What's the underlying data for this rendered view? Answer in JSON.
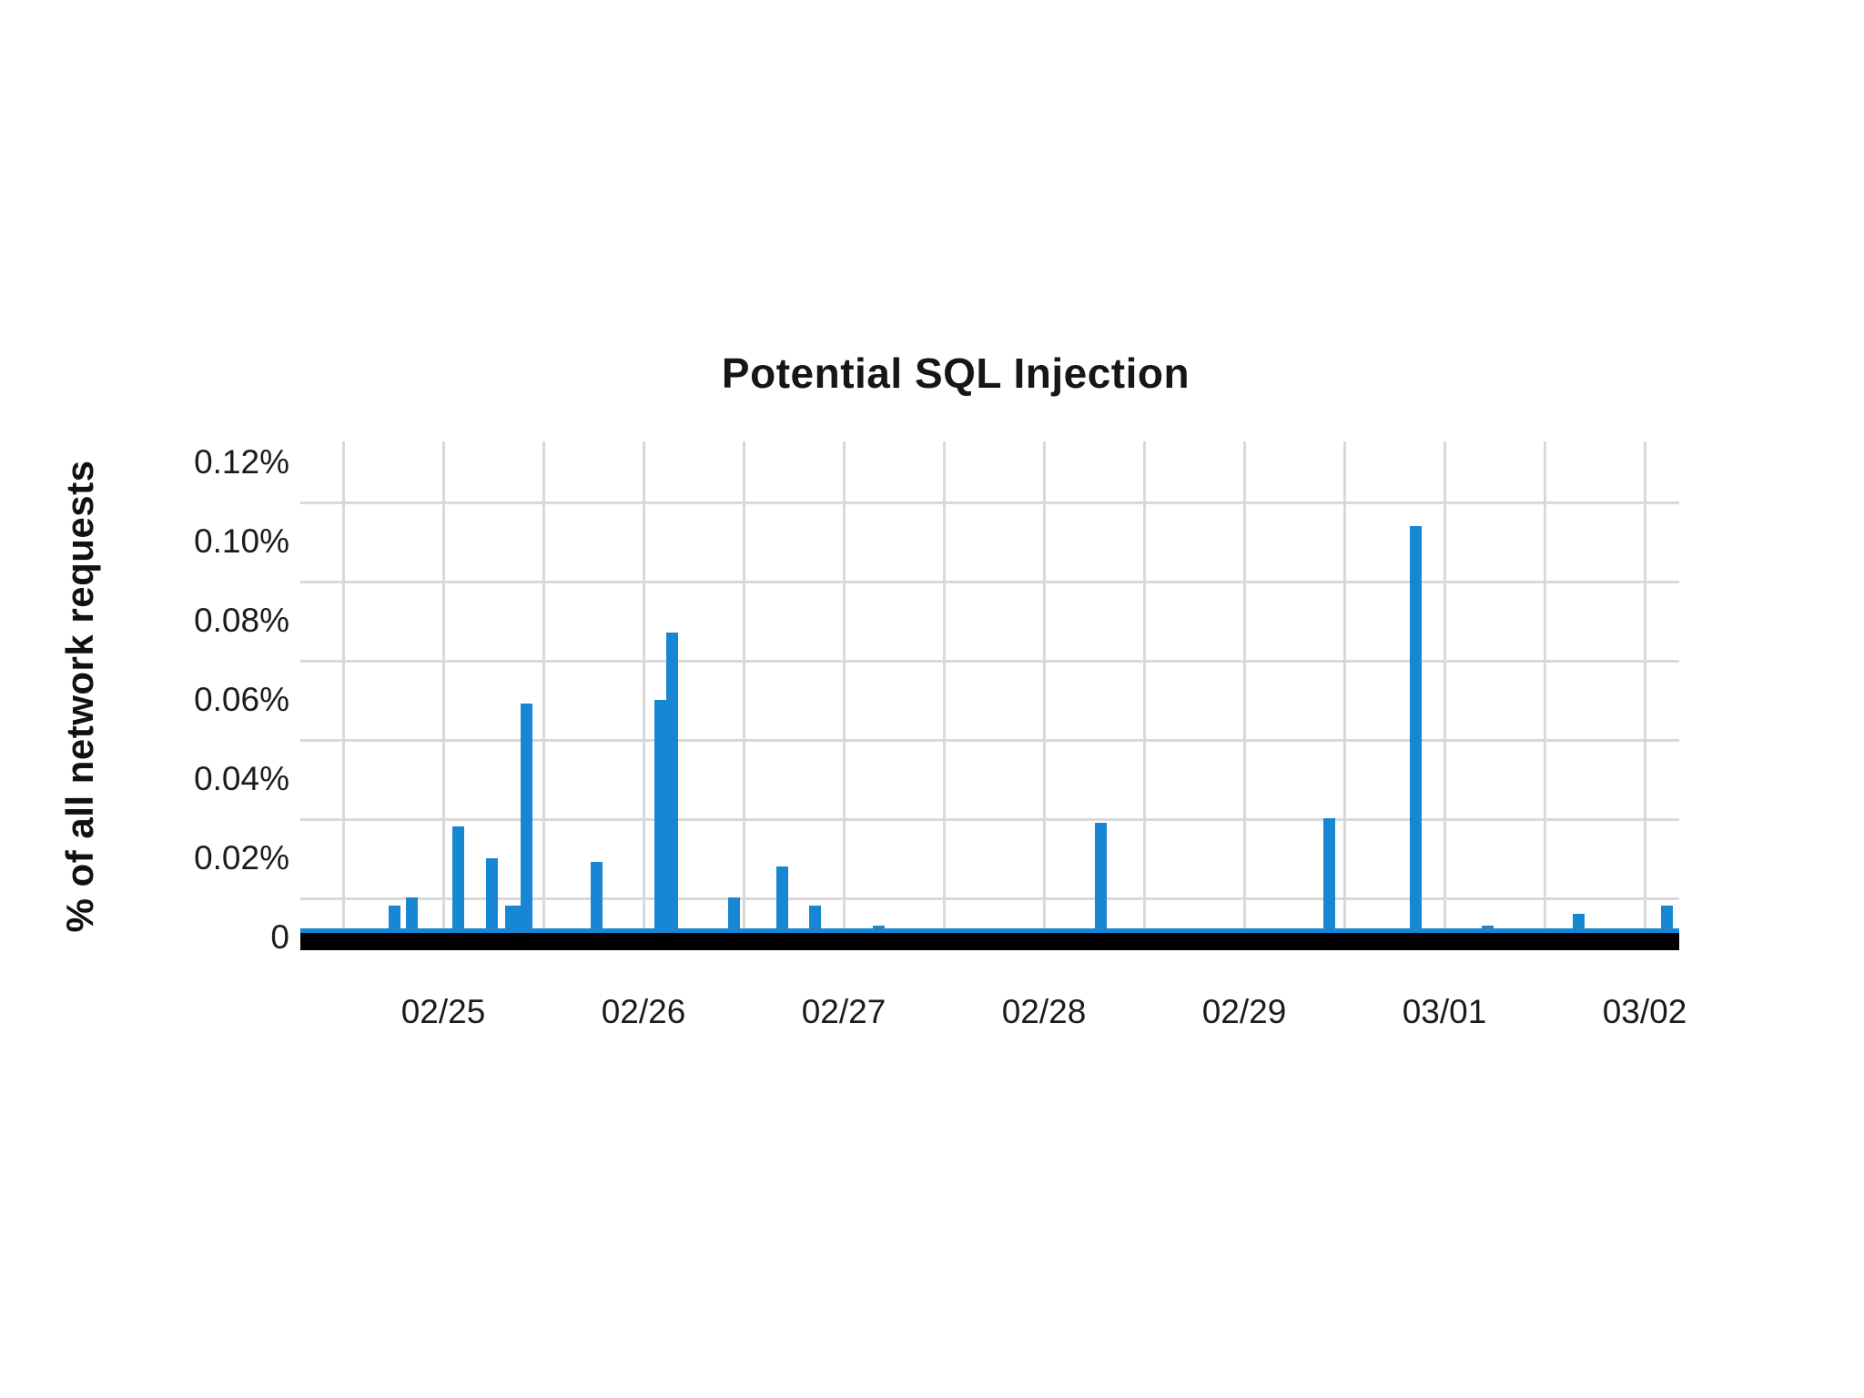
{
  "chart_data": {
    "type": "bar",
    "title": "Potential SQL Injection",
    "ylabel": "% of all network requests",
    "xlabel": "",
    "legend": "none",
    "grid": true,
    "background": "#ffffff",
    "colors": {
      "bar": "#1787d3",
      "axis_line": "#000000",
      "gridline": "#d9d9d9",
      "text": "#1b1b1b"
    },
    "y_ticks": [
      {
        "label": "0",
        "value": 0
      },
      {
        "label": "0.02%",
        "value": 0.02
      },
      {
        "label": "0.04%",
        "value": 0.04
      },
      {
        "label": "0.06%",
        "value": 0.06
      },
      {
        "label": "0.08%",
        "value": 0.08
      },
      {
        "label": "0.10%",
        "value": 0.1
      },
      {
        "label": "0.12%",
        "value": 0.12
      }
    ],
    "ylim": [
      0,
      0.125
    ],
    "gridline_note": "horizontal gridlines fall midway between labeled y values; vertical gridlines every half day",
    "x_tick_labels": [
      "02/25",
      "02/26",
      "02/27",
      "02/28",
      "02/29",
      "03/01",
      "03/02"
    ],
    "x_range_days": [
      -0.714,
      6.173
    ],
    "x_gridline_interval_days": 0.5,
    "t_unit": "days since 02/25 00:00",
    "value_unit": "percent of all network requests",
    "bars": [
      {
        "t": -0.241,
        "value": 0.008,
        "approx_time": "02/24 ~18:00"
      },
      {
        "t": -0.155,
        "value": 0.01,
        "approx_time": "02/24 ~20:30"
      },
      {
        "t": 0.077,
        "value": 0.028,
        "approx_time": "02/25 ~02:00"
      },
      {
        "t": 0.245,
        "value": 0.02,
        "approx_time": "02/25 ~06:00"
      },
      {
        "t": 0.35,
        "value": 0.008,
        "w": 18,
        "approx_time": "02/25 ~08:30"
      },
      {
        "t": 0.414,
        "value": 0.059,
        "approx_time": "02/25 ~10:00"
      },
      {
        "t": 0.764,
        "value": 0.019,
        "approx_time": "02/25 ~18:20"
      },
      {
        "t": 1.086,
        "value": 0.06,
        "approx_time": "02/26 ~02:00"
      },
      {
        "t": 1.145,
        "value": 0.077,
        "approx_time": "02/26 ~03:30"
      },
      {
        "t": 1.45,
        "value": 0.01,
        "approx_time": "02/26 ~11:00"
      },
      {
        "t": 1.691,
        "value": 0.018,
        "approx_time": "02/26 ~16:30"
      },
      {
        "t": 1.855,
        "value": 0.008,
        "approx_time": "02/26 ~20:30"
      },
      {
        "t": 2.173,
        "value": 0.003,
        "approx_time": "02/27 ~04:00"
      },
      {
        "t": 3.282,
        "value": 0.029,
        "approx_time": "02/28 ~07:00"
      },
      {
        "t": 4.427,
        "value": 0.03,
        "approx_time": "02/29 ~10:15"
      },
      {
        "t": 4.859,
        "value": 0.104,
        "approx_time": "02/29 ~20:30"
      },
      {
        "t": 5.218,
        "value": 0.003,
        "approx_time": "03/01 ~05:15"
      },
      {
        "t": 5.67,
        "value": 0.006,
        "approx_time": "03/01 ~16:00"
      },
      {
        "t": 6.11,
        "value": 0.008,
        "approx_time": "03/02 ~02:40"
      }
    ]
  }
}
